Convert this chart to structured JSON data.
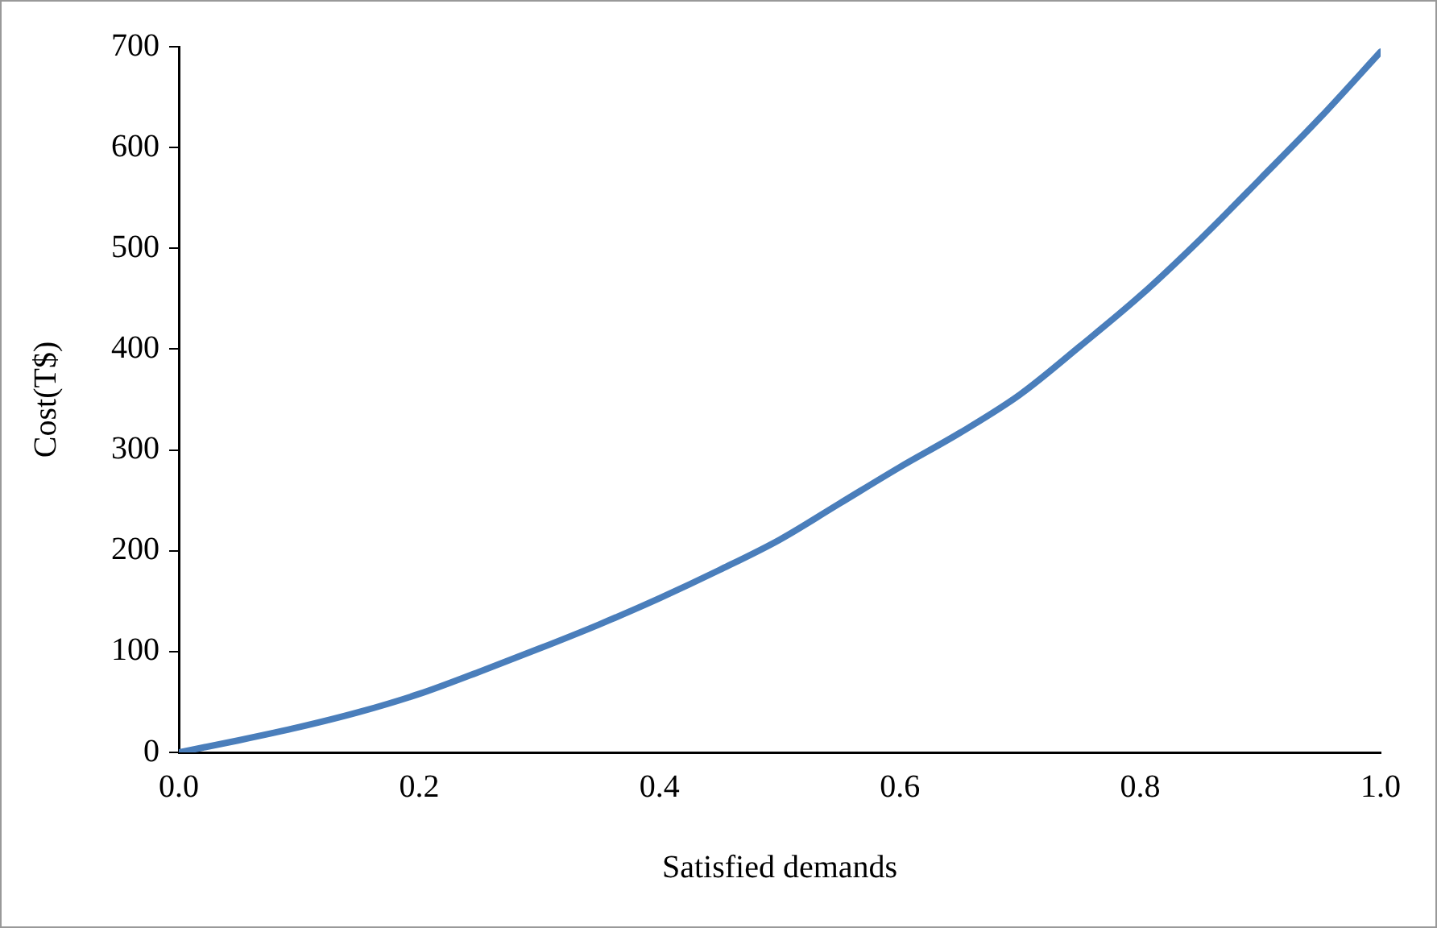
{
  "chart_data": {
    "type": "line",
    "xlabel": "Satisfied demands",
    "ylabel": "Cost(T$)",
    "x": [
      0,
      0.05,
      0.1,
      0.15,
      0.2,
      0.25,
      0.3,
      0.35,
      0.4,
      0.45,
      0.5,
      0.55,
      0.6,
      0.65,
      0.7,
      0.75,
      0.8,
      0.85,
      0.9,
      0.95,
      1.0
    ],
    "series": [
      {
        "color": "#4a7ebb",
        "values": [
          0,
          12,
          25,
          40,
          58,
          80,
          103,
          127,
          153,
          181,
          211,
          247,
          283,
          317,
          355,
          403,
          453,
          509,
          569,
          630,
          695
        ]
      }
    ],
    "xlim": [
      0,
      1
    ],
    "xticks": [
      {
        "value": 0,
        "label": "0.0"
      },
      0.2,
      0.4,
      0.6,
      0.8,
      {
        "value": 1,
        "label": "1.0"
      }
    ],
    "ylim": [
      0,
      700
    ],
    "yticks": [
      0,
      100,
      200,
      300,
      400,
      500,
      600,
      700
    ],
    "grid": false,
    "legend": false,
    "marker": "none",
    "line_style": "solid"
  }
}
